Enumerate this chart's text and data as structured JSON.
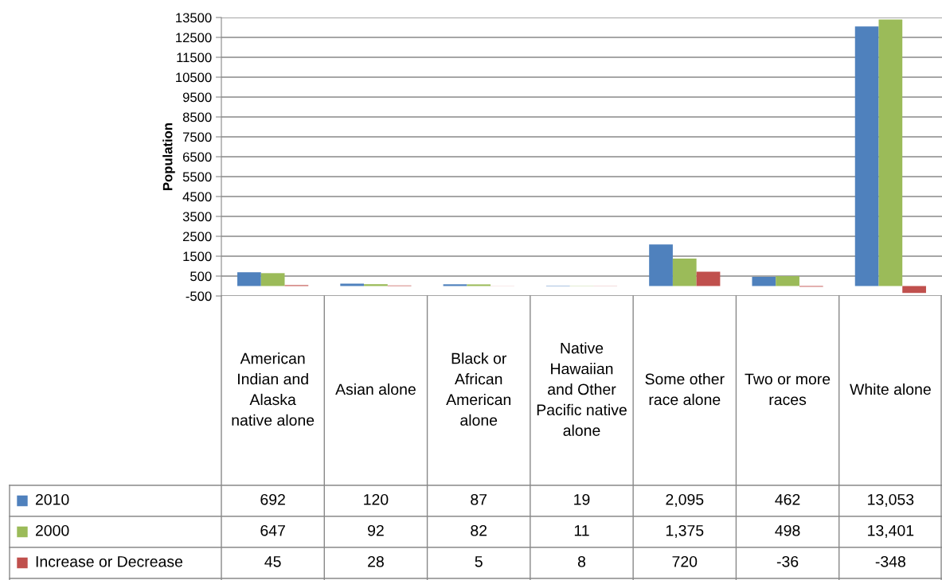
{
  "chart_data": {
    "type": "bar",
    "ylabel": "Population",
    "categories": [
      "American Indian and Alaska native alone",
      "Asian alone",
      "Black or African American alone",
      "Native Hawaiian and Other Pacific native alone",
      "Some other race alone",
      "Two or more races",
      "White alone"
    ],
    "series": [
      {
        "name": "2010",
        "color": "#4f81bd",
        "values": [
          692,
          120,
          87,
          19,
          2095,
          462,
          13053
        ],
        "value_labels": [
          "692",
          "120",
          "87",
          "19",
          "2,095",
          "462",
          "13,053"
        ]
      },
      {
        "name": "2000",
        "color": "#9bbb59",
        "values": [
          647,
          92,
          82,
          11,
          1375,
          498,
          13401
        ],
        "value_labels": [
          "647",
          "92",
          "82",
          "11",
          "1,375",
          "498",
          "13,401"
        ]
      },
      {
        "name": "Increase or Decrease",
        "color": "#c0504d",
        "values": [
          45,
          28,
          5,
          8,
          720,
          -36,
          -348
        ],
        "value_labels": [
          "45",
          "28",
          "5",
          "8",
          "720",
          "-36",
          "-348"
        ]
      }
    ],
    "ylim": [
      -500,
      13500
    ],
    "yticks": [
      -500,
      500,
      1500,
      2500,
      3500,
      4500,
      5500,
      6500,
      7500,
      8500,
      9500,
      10500,
      11500,
      12500,
      13500
    ],
    "grid": "y",
    "legend": "bottom"
  }
}
